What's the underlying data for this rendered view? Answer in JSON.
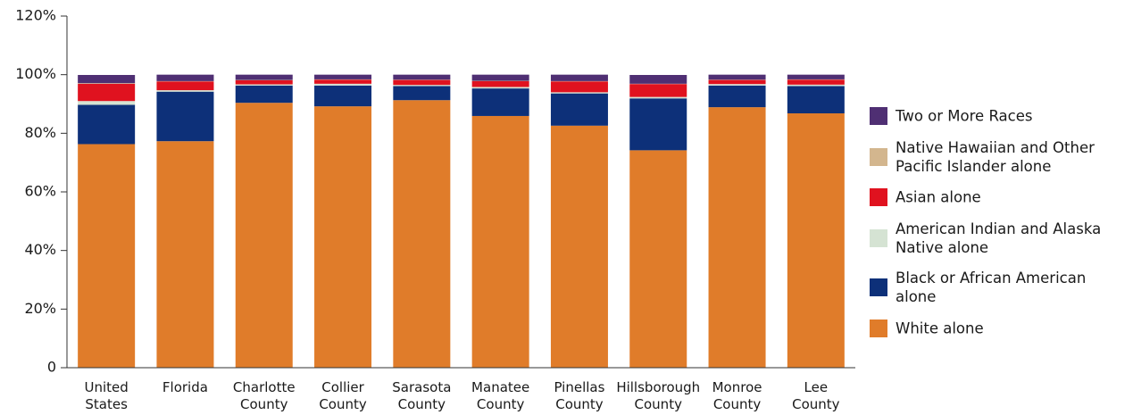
{
  "chart_data": {
    "type": "stacked-bar",
    "categories": [
      "United States",
      "Florida",
      "Charlotte County",
      "Collier County",
      "Sarasota County",
      "Manatee County",
      "Pinellas County",
      "Hillsborough County",
      "Monroe County",
      "Lee County"
    ],
    "series": [
      {
        "name": "White alone",
        "color": "#e07c2a",
        "values": [
          76.3,
          77.3,
          90.4,
          89.2,
          91.3,
          85.9,
          82.6,
          74.2,
          88.9,
          86.8
        ]
      },
      {
        "name": "Black or African American alone",
        "color": "#0d3079",
        "values": [
          13.4,
          16.9,
          5.9,
          7.1,
          4.8,
          9.4,
          11.0,
          17.7,
          7.4,
          9.3
        ]
      },
      {
        "name": "American Indian and Alaska Native alone",
        "color": "#d5e3d3",
        "values": [
          1.3,
          0.5,
          0.4,
          0.6,
          0.4,
          0.5,
          0.4,
          0.5,
          0.5,
          0.5
        ]
      },
      {
        "name": "Asian alone",
        "color": "#e0121f",
        "values": [
          5.9,
          3.0,
          1.4,
          1.4,
          1.7,
          2.0,
          3.7,
          4.4,
          1.4,
          1.7
        ]
      },
      {
        "name": "Native Hawaiian and Other Pacific Islander alone",
        "color": "#d3b68e",
        "values": [
          0.2,
          0.1,
          0.1,
          0.1,
          0.1,
          0.1,
          0.1,
          0.1,
          0.1,
          0.1
        ]
      },
      {
        "name": "Two or More Races",
        "color": "#4f2f73",
        "values": [
          2.8,
          2.2,
          1.8,
          1.6,
          1.7,
          2.1,
          2.2,
          3.0,
          1.7,
          1.6
        ]
      }
    ],
    "ylim": [
      0,
      120
    ],
    "yticks": [
      0,
      {
        "value": 20,
        "label": "20%"
      },
      {
        "value": 40,
        "label": "40%"
      },
      {
        "value": 60,
        "label": "60%"
      },
      {
        "value": 80,
        "label": "80%"
      },
      {
        "value": 100,
        "label": "100%"
      },
      {
        "value": 120,
        "label": "120%"
      }
    ],
    "grid": false,
    "legend": "right"
  }
}
